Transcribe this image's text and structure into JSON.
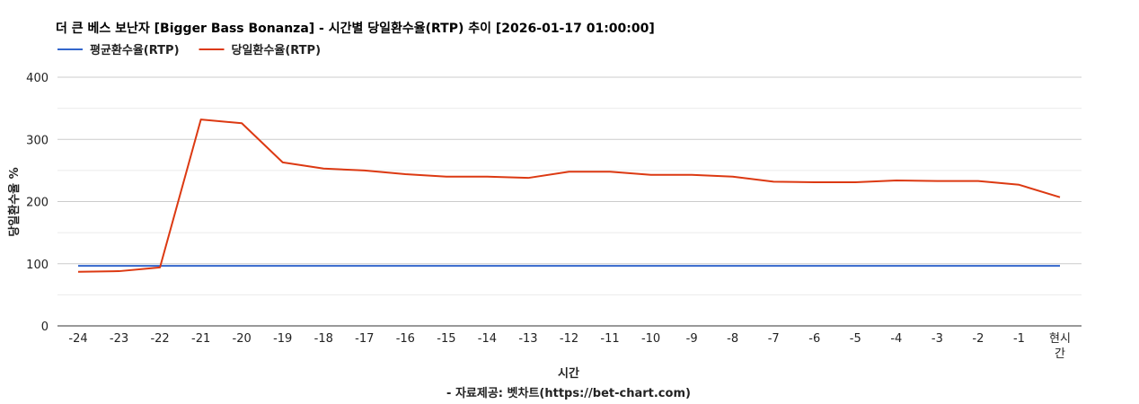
{
  "chart_data": {
    "type": "line",
    "title": "더 큰 베스 보난자 [Bigger Bass Bonanza] - 시간별 당일환수율(RTP) 추이 [2026-01-17 01:00:00]",
    "xlabel": "시간",
    "ylabel": "당일환수율 %",
    "caption": "- 자료제공: 벳차트(https://bet-chart.com)",
    "categories": [
      "-24",
      "-23",
      "-22",
      "-21",
      "-20",
      "-19",
      "-18",
      "-17",
      "-16",
      "-15",
      "-14",
      "-13",
      "-12",
      "-11",
      "-10",
      "-9",
      "-8",
      "-7",
      "-6",
      "-5",
      "-4",
      "-3",
      "-2",
      "-1",
      "현시간"
    ],
    "series": [
      {
        "name": "평균환수율(RTP)",
        "color": "#3366cc",
        "values": [
          96.5,
          96.5,
          96.5,
          96.5,
          96.5,
          96.5,
          96.5,
          96.5,
          96.5,
          96.5,
          96.5,
          96.5,
          96.5,
          96.5,
          96.5,
          96.5,
          96.5,
          96.5,
          96.5,
          96.5,
          96.5,
          96.5,
          96.5,
          96.5,
          96.5
        ]
      },
      {
        "name": "당일환수율(RTP)",
        "color": "#dc3912",
        "values": [
          87,
          88,
          94,
          332,
          326,
          263,
          253,
          250,
          244,
          240,
          240,
          238,
          248,
          248,
          243,
          243,
          240,
          232,
          231,
          231,
          234,
          233,
          233,
          227,
          207
        ]
      }
    ],
    "ylim": [
      0,
      400
    ],
    "yticks": [
      0,
      100,
      200,
      300,
      400
    ],
    "grid": true,
    "legend_position": "top-left"
  }
}
